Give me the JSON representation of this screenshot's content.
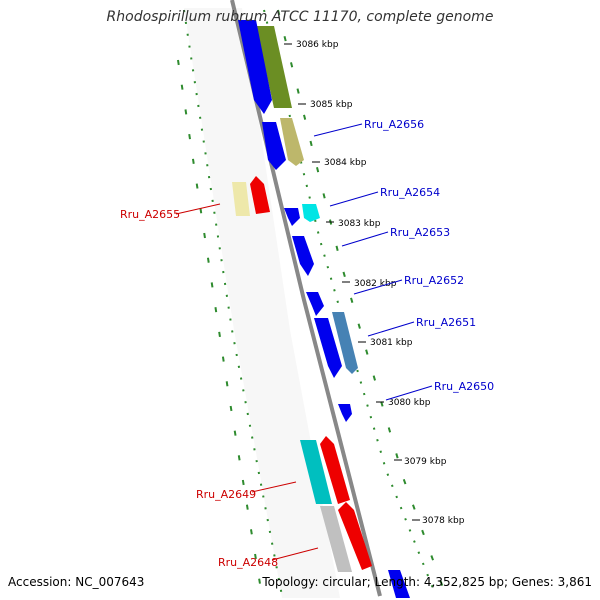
{
  "title": "Rhodospirillum rubrum ATCC 11170, complete genome",
  "footer": {
    "accession": "Accession: NC_007643",
    "summary": "Topology: circular; Length: 4,352,825 bp; Genes: 3,861"
  },
  "tick_labels": [
    "3086 kbp",
    "3085 kbp",
    "3084 kbp",
    "3083 kbp",
    "3082 kbp",
    "3081 kbp",
    "3080 kbp",
    "3079 kbp",
    "3078 kbp"
  ],
  "gene_labels": [
    {
      "text": "Rru_A2656",
      "color": "#0000cc"
    },
    {
      "text": "Rru_A2655",
      "color": "#cc0000"
    },
    {
      "text": "Rru_A2654",
      "color": "#0000cc"
    },
    {
      "text": "Rru_A2653",
      "color": "#0000cc"
    },
    {
      "text": "Rru_A2652",
      "color": "#0000cc"
    },
    {
      "text": "Rru_A2651",
      "color": "#0000cc"
    },
    {
      "text": "Rru_A2650",
      "color": "#0000cc"
    },
    {
      "text": "Rru_A2649",
      "color": "#cc0000"
    },
    {
      "text": "Rru_A2648",
      "color": "#cc0000"
    }
  ],
  "colors": {
    "backbone": "#888888",
    "dotted_track": "#2e8b2e",
    "forward_cds": "#0000ee",
    "reverse_cds": "#ee0000",
    "olive": "#6b8e23",
    "khaki": "#bdb76b",
    "cyan": "#00e5e5",
    "teal": "#00bfbf",
    "steel": "#4682b4",
    "pale_yellow": "#eee8aa",
    "grey": "#c0c0c0"
  }
}
